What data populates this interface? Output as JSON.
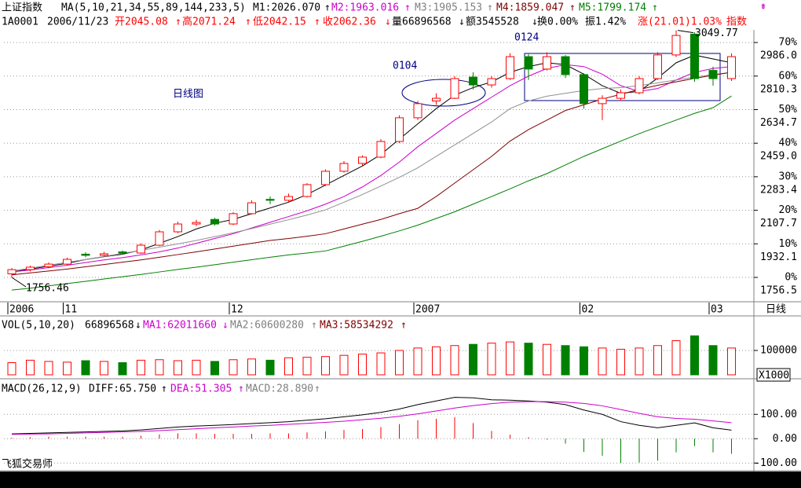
{
  "header": {
    "row1": [
      {
        "text": "上证指数",
        "color": "#000000"
      },
      {
        "text": "MA(5,10,21,34,55,89,144,233,5)",
        "color": "#000000"
      },
      {
        "text": "M1:2026.070",
        "color": "#000000"
      },
      {
        "text": "M2:1963.016",
        "color": "#cc00cc"
      },
      {
        "text": "M3:1905.153",
        "color": "#808080"
      },
      {
        "text": "M4:1859.047",
        "color": "#800000"
      },
      {
        "text": "M5:1799.174",
        "color": "#008000"
      }
    ],
    "row2": [
      {
        "text": "1A0001",
        "color": "#000000"
      },
      {
        "text": "2006/11/23",
        "color": "#000000"
      },
      {
        "text": "开2045.08",
        "color": "#ff0000"
      },
      {
        "text": "高2071.24",
        "color": "#ff0000"
      },
      {
        "text": "低2042.15",
        "color": "#ff0000"
      },
      {
        "text": "收2062.36",
        "color": "#ff0000"
      },
      {
        "text": "量66896568",
        "color": "#000000"
      },
      {
        "text": "额3545528",
        "color": "#000000"
      },
      {
        "text": "换0.00%",
        "color": "#000000"
      },
      {
        "text": "振1.42%",
        "color": "#000000"
      },
      {
        "text": "涨(21.01)1.03%",
        "color": "#ff0000"
      },
      {
        "text": "指数",
        "color": "#ff0000"
      }
    ]
  },
  "chart_data": [
    {
      "type": "candlestick",
      "annotations": [
        "0104",
        "0124",
        "日线图"
      ],
      "high_label": "3049.77",
      "low_label": "1756.46",
      "axis_unit": "日线",
      "categories": [
        "2006",
        null,
        null,
        "11",
        null,
        null,
        null,
        null,
        null,
        null,
        null,
        null,
        "12",
        null,
        null,
        null,
        null,
        null,
        null,
        null,
        null,
        null,
        "2007",
        null,
        null,
        null,
        null,
        null,
        null,
        null,
        null,
        "02",
        null,
        null,
        null,
        null,
        null,
        null,
        "03",
        null
      ],
      "open": [
        1775,
        1797,
        1812,
        1826,
        1878,
        1872,
        1890,
        1884,
        1925,
        1995,
        2036,
        2060,
        2036,
        2090,
        2165,
        2160,
        2180,
        2242,
        2312,
        2353,
        2386,
        2468,
        2592,
        2680,
        2694,
        2805,
        2764,
        2797,
        2912,
        2847,
        2912,
        2818,
        2666,
        2694,
        2723,
        2797,
        2921,
        3030,
        2840,
        2797
      ],
      "high": [
        1806,
        1818,
        1835,
        1860,
        1888,
        1890,
        1898,
        1935,
        2005,
        2048,
        2058,
        2068,
        2098,
        2160,
        2180,
        2195,
        2250,
        2322,
        2365,
        2395,
        2480,
        2605,
        2680,
        2720,
        2810,
        2830,
        2810,
        2930,
        2925,
        2935,
        2920,
        2825,
        2710,
        2740,
        2810,
        2935,
        3049.77,
        3040,
        2860,
        2930
      ],
      "low": [
        1756.46,
        1788,
        1805,
        1820,
        1862,
        1865,
        1876,
        1880,
        1920,
        1988,
        2025,
        2028,
        2030,
        2085,
        2140,
        2150,
        2175,
        2235,
        2305,
        2340,
        2380,
        2460,
        2580,
        2660,
        2690,
        2740,
        2750,
        2790,
        2790,
        2840,
        2800,
        2640,
        2580,
        2680,
        2715,
        2790,
        2910,
        2780,
        2760,
        2785
      ],
      "close": [
        1797,
        1810,
        1826,
        1851,
        1872,
        1880,
        1884,
        1925,
        1995,
        2036,
        2044,
        2036,
        2090,
        2147,
        2160,
        2180,
        2242,
        2312,
        2353,
        2386,
        2468,
        2592,
        2666,
        2694,
        2797,
        2764,
        2797,
        2912,
        2847,
        2912,
        2818,
        2666,
        2694,
        2723,
        2797,
        2921,
        3023,
        2797,
        2797,
        2912
      ],
      "up_color": "#ff0000",
      "down_color": "#008000",
      "series": [
        {
          "name": "MA5",
          "color": "#000000",
          "values": [
            1785,
            1800,
            1815,
            1830,
            1850,
            1865,
            1878,
            1900,
            1935,
            1970,
            2010,
            2040,
            2060,
            2090,
            2120,
            2150,
            2190,
            2240,
            2290,
            2340,
            2400,
            2480,
            2560,
            2640,
            2710,
            2750,
            2780,
            2830,
            2860,
            2880,
            2870,
            2820,
            2760,
            2720,
            2730,
            2800,
            2880,
            2920,
            2900,
            2880
          ]
        },
        {
          "name": "MA10",
          "color": "#cc00cc",
          "values": [
            1785,
            1795,
            1808,
            1820,
            1834,
            1848,
            1860,
            1874,
            1890,
            1910,
            1935,
            1960,
            1985,
            2015,
            2045,
            2075,
            2105,
            2140,
            2180,
            2230,
            2290,
            2360,
            2440,
            2510,
            2580,
            2640,
            2700,
            2760,
            2810,
            2850,
            2870,
            2860,
            2820,
            2760,
            2730,
            2745,
            2790,
            2830,
            2850,
            2860
          ]
        },
        {
          "name": "MA21",
          "color": "#909090",
          "values": [
            1790,
            1805,
            1820,
            1835,
            1850,
            1866,
            1882,
            1898,
            1915,
            1932,
            1950,
            1970,
            1990,
            2012,
            2035,
            2058,
            2083,
            2110,
            2150,
            2190,
            2235,
            2280,
            2330,
            2390,
            2450,
            2510,
            2570,
            2640,
            2680,
            2705,
            2720,
            2735,
            2745,
            2750,
            2760,
            2775,
            2790,
            2805,
            2818,
            2830
          ]
        },
        {
          "name": "MA34",
          "color": "#800000",
          "values": [
            1770,
            1780,
            1790,
            1800,
            1812,
            1824,
            1836,
            1848,
            1862,
            1876,
            1890,
            1905,
            1920,
            1935,
            1950,
            1960,
            1972,
            1985,
            2010,
            2035,
            2060,
            2090,
            2118,
            2180,
            2250,
            2320,
            2390,
            2470,
            2530,
            2580,
            2630,
            2660,
            2690,
            2715,
            2740,
            2762,
            2780,
            2798,
            2815,
            2830
          ]
        },
        {
          "name": "MA55",
          "color": "#008000",
          "values": [
            1690,
            1700,
            1712,
            1724,
            1736,
            1748,
            1760,
            1772,
            1785,
            1798,
            1810,
            1823,
            1836,
            1849,
            1862,
            1874,
            1884,
            1895,
            1920,
            1945,
            1972,
            2000,
            2030,
            2065,
            2100,
            2140,
            2180,
            2220,
            2262,
            2300,
            2345,
            2390,
            2430,
            2470,
            2509,
            2545,
            2580,
            2615,
            2645,
            2706
          ]
        }
      ],
      "ylim": [
        1633.05,
        3052.2
      ],
      "yticks": [
        {
          "value": 2986,
          "label": "2986.0"
        },
        {
          "value": 2810.3,
          "label": "2810.3"
        },
        {
          "value": 2634.7,
          "label": "2634.7"
        },
        {
          "value": 2459,
          "label": "2459.0"
        },
        {
          "value": 2283.4,
          "label": "2283.4"
        },
        {
          "value": 2107.7,
          "label": "2107.7"
        },
        {
          "value": 1932.1,
          "label": "1932.1"
        },
        {
          "value": 1756.5,
          "label": "1756.5"
        }
      ],
      "y2lim": [
        -7.03,
        73.77
      ],
      "y2ticks": [
        {
          "value": 70,
          "label": "70%"
        },
        {
          "value": 60,
          "label": "60%"
        },
        {
          "value": 50,
          "label": "50%"
        },
        {
          "value": 40,
          "label": "40%"
        },
        {
          "value": 30,
          "label": "30%"
        },
        {
          "value": 20,
          "label": "20%"
        },
        {
          "value": 10,
          "label": "10%"
        },
        {
          "value": 0,
          "label": "0%"
        }
      ],
      "grid": true
    },
    {
      "type": "bar",
      "title": "VOL(5,10,20)",
      "header": [
        {
          "text": "66896568",
          "color": "#000000"
        },
        {
          "text": "MA1:62011660",
          "color": "#cc00cc"
        },
        {
          "text": "MA2:60600280",
          "color": "#808080"
        },
        {
          "text": "MA3:58534292",
          "color": "#800000"
        }
      ],
      "multiplier": "X1000",
      "values": [
        50000,
        60000,
        55000,
        52000,
        58000,
        55000,
        50000,
        60000,
        62000,
        58000,
        60000,
        55000,
        62000,
        65000,
        60000,
        70000,
        72000,
        75000,
        80000,
        85000,
        90000,
        100000,
        110000,
        115000,
        120000,
        125000,
        130000,
        135000,
        130000,
        125000,
        120000,
        115000,
        110000,
        105000,
        110000,
        120000,
        140000,
        160000,
        120000,
        110000
      ],
      "ylim": [
        0,
        232000
      ],
      "yticks": [
        100000
      ]
    },
    {
      "type": "macd",
      "title": "MACD(26,12,9)",
      "header": [
        {
          "text": "DIFF:65.750",
          "color": "#000000"
        },
        {
          "text": "DEA:51.305",
          "color": "#cc00cc"
        },
        {
          "text": "MACD:28.890",
          "color": "#808080"
        }
      ],
      "series": [
        {
          "name": "DIFF",
          "color": "#000000",
          "values": [
            20,
            22,
            24,
            26,
            28,
            30,
            32,
            36,
            42,
            48,
            52,
            55,
            58,
            62,
            66,
            70,
            76,
            82,
            90,
            98,
            108,
            122,
            140,
            155,
            170,
            168,
            160,
            158,
            155,
            150,
            140,
            118,
            100,
            70,
            55,
            45,
            55,
            65,
            45,
            35
          ]
        },
        {
          "name": "DEA",
          "color": "#cc00cc",
          "values": [
            18,
            19,
            20,
            22,
            24,
            26,
            28,
            30,
            33,
            37,
            41,
            45,
            48,
            52,
            55,
            59,
            63,
            67,
            72,
            78,
            84,
            92,
            102,
            114,
            126,
            136,
            144,
            150,
            152,
            152,
            150,
            145,
            135,
            120,
            104,
            90,
            83,
            80,
            73,
            66
          ]
        }
      ],
      "values": [
        4,
        6,
        8,
        8,
        8,
        8,
        8,
        12,
        18,
        22,
        22,
        20,
        20,
        20,
        22,
        22,
        26,
        30,
        36,
        40,
        48,
        60,
        76,
        82,
        88,
        64,
        32,
        16,
        6,
        -4,
        -20,
        -54,
        -70,
        -100,
        -98,
        -90,
        -56,
        -30,
        -56,
        -62
      ],
      "up_color": "#ff0000",
      "down_color": "#008000",
      "ylim": [
        -125,
        230
      ],
      "yticks": [
        {
          "value": 100,
          "label": "100.00"
        },
        {
          "value": 0,
          "label": "0.00"
        },
        {
          "value": -100,
          "label": "-100.00"
        }
      ]
    }
  ],
  "footer": "飞狐交易师"
}
